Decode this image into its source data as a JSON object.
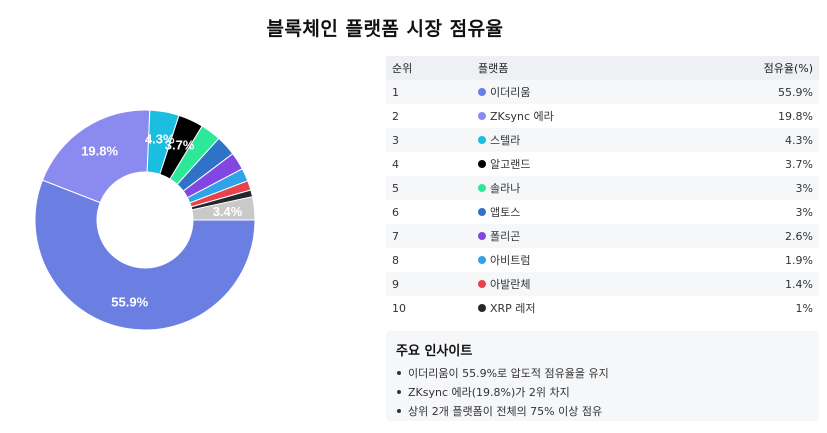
{
  "title": "블록체인 플랫폼 시장 점유율",
  "table": {
    "headers": [
      "순위",
      "플랫폼",
      "점유율(%)"
    ],
    "rows": [
      {
        "rank": "1",
        "name": "이더리움",
        "share": "55.9%",
        "color": "#6b7fe3"
      },
      {
        "rank": "2",
        "name": "ZKsync 에라",
        "share": "19.8%",
        "color": "#8b8af0"
      },
      {
        "rank": "3",
        "name": "스텔라",
        "share": "4.3%",
        "color": "#1bbde0"
      },
      {
        "rank": "4",
        "name": "알고랜드",
        "share": "3.7%",
        "color": "#000000"
      },
      {
        "rank": "5",
        "name": "솔라나",
        "share": "3%",
        "color": "#2ee89a"
      },
      {
        "rank": "6",
        "name": "앱토스",
        "share": "3%",
        "color": "#2f73c8"
      },
      {
        "rank": "7",
        "name": "폴리곤",
        "share": "2.6%",
        "color": "#8246e3"
      },
      {
        "rank": "8",
        "name": "아비트럼",
        "share": "1.9%",
        "color": "#2fa2e8"
      },
      {
        "rank": "9",
        "name": "아발란체",
        "share": "1.4%",
        "color": "#e8424a"
      },
      {
        "rank": "10",
        "name": "XRP 레저",
        "share": "1%",
        "color": "#23272e"
      }
    ]
  },
  "insights": {
    "title": "주요 인사이트",
    "items": [
      "이더리움이 55.9%로 압도적 점유율을 유지",
      "ZKsync 에라(19.8%)가 2위 차지",
      "상위 2개 플랫폼이 전체의 75% 이상 점유"
    ]
  },
  "chart_data": {
    "type": "pie",
    "title": "블록체인 플랫폼 시장 점유율",
    "hole": true,
    "categories": [
      "이더리움",
      "ZKsync 에라",
      "스텔라",
      "알고랜드",
      "솔라나",
      "앱토스",
      "폴리곤",
      "아비트럼",
      "아발란체",
      "XRP 레저",
      ""
    ],
    "values": [
      55.9,
      19.8,
      4.3,
      3.7,
      3.0,
      3.0,
      2.6,
      1.9,
      1.4,
      1.0,
      3.4
    ],
    "colors": [
      "#6b7fe3",
      "#8b8af0",
      "#1bbde0",
      "#000000",
      "#2ee89a",
      "#2f73c8",
      "#8246e3",
      "#2fa2e8",
      "#e8424a",
      "#23272e",
      "#c9c9c9"
    ],
    "slice_labels": [
      "55.9%",
      "19.8%",
      "4.3%",
      "3.7%",
      "",
      "",
      "",
      "",
      "",
      "",
      "3.4%"
    ]
  }
}
